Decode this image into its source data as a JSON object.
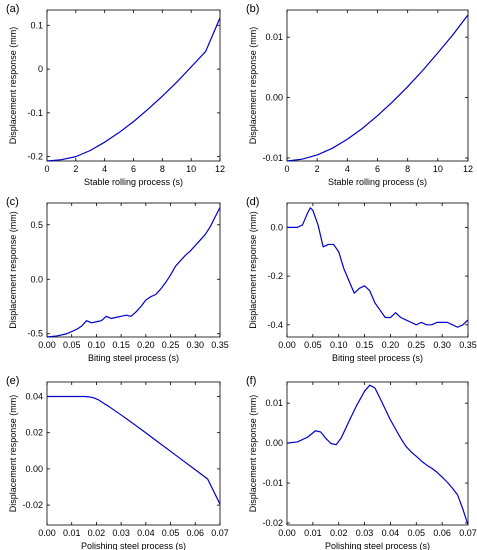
{
  "chart_data": [
    {
      "panel_label": "(a)",
      "type": "line",
      "xlabel": "Stable rolling process (s)",
      "ylabel": "Displacement response (mm)",
      "xlim": [
        0,
        12
      ],
      "ylim": [
        -0.21,
        0.135
      ],
      "xticks": [
        "0",
        "2",
        "4",
        "6",
        "8",
        "10",
        "12"
      ],
      "xtick_values": [
        0,
        2,
        4,
        6,
        8,
        10,
        12
      ],
      "yticks": [
        "-0.2",
        "-0.1",
        "0",
        "0.1"
      ],
      "ytick_values": [
        -0.2,
        -0.1,
        0,
        0.1
      ],
      "series": [
        {
          "color": "#0000cc",
          "x": [
            0,
            1,
            2,
            3,
            4,
            5,
            6,
            7,
            8,
            9,
            10,
            11,
            12
          ],
          "y": [
            -0.21,
            -0.207,
            -0.2,
            -0.186,
            -0.167,
            -0.145,
            -0.12,
            -0.092,
            -0.062,
            -0.03,
            0.005,
            0.04,
            0.117
          ]
        }
      ]
    },
    {
      "panel_label": "(b)",
      "type": "line",
      "xlabel": "Stable rolling process (s)",
      "ylabel": "Displacement response (mm)",
      "xlim": [
        0,
        12
      ],
      "ylim": [
        -0.0105,
        0.0145
      ],
      "xticks": [
        "0",
        "2",
        "4",
        "6",
        "8",
        "10",
        "12"
      ],
      "xtick_values": [
        0,
        2,
        4,
        6,
        8,
        10,
        12
      ],
      "yticks": [
        "-0.01",
        "0.00",
        "0.01"
      ],
      "ytick_values": [
        -0.01,
        0,
        0.01
      ],
      "series": [
        {
          "color": "#0000cc",
          "x": [
            0,
            1,
            2,
            3,
            4,
            5,
            6,
            7,
            8,
            9,
            10,
            11,
            12
          ],
          "y": [
            -0.0105,
            -0.0102,
            -0.0095,
            -0.0084,
            -0.0069,
            -0.0051,
            -0.003,
            -0.0007,
            0.0018,
            0.0045,
            0.0074,
            0.0104,
            0.0137
          ]
        }
      ]
    },
    {
      "panel_label": "(c)",
      "type": "line",
      "xlabel": "Biting steel process (s)",
      "ylabel": "Displacement response (mm)",
      "xlim": [
        0,
        0.35
      ],
      "ylim": [
        -0.53,
        0.7
      ],
      "xticks": [
        "0.00",
        "0.05",
        "0.10",
        "0.15",
        "0.20",
        "0.25",
        "0.30",
        "0.35"
      ],
      "xtick_values": [
        0,
        0.05,
        0.1,
        0.15,
        0.2,
        0.25,
        0.3,
        0.35
      ],
      "yticks": [
        "-0.5",
        "0.0",
        "0.5"
      ],
      "ytick_values": [
        -0.5,
        0,
        0.5
      ],
      "series": [
        {
          "color": "#0000cc",
          "x": [
            0,
            0.02,
            0.04,
            0.06,
            0.07,
            0.08,
            0.09,
            0.1,
            0.11,
            0.12,
            0.13,
            0.14,
            0.15,
            0.16,
            0.17,
            0.18,
            0.19,
            0.2,
            0.21,
            0.22,
            0.23,
            0.24,
            0.25,
            0.26,
            0.27,
            0.28,
            0.29,
            0.3,
            0.31,
            0.32,
            0.33,
            0.34,
            0.35
          ],
          "y": [
            -0.53,
            -0.52,
            -0.5,
            -0.46,
            -0.43,
            -0.38,
            -0.4,
            -0.39,
            -0.38,
            -0.34,
            -0.36,
            -0.35,
            -0.34,
            -0.33,
            -0.34,
            -0.3,
            -0.25,
            -0.19,
            -0.16,
            -0.14,
            -0.09,
            -0.03,
            0.04,
            0.12,
            0.17,
            0.22,
            0.26,
            0.31,
            0.36,
            0.41,
            0.48,
            0.57,
            0.66
          ]
        }
      ]
    },
    {
      "panel_label": "(d)",
      "type": "line",
      "xlabel": "Biting steel process (s)",
      "ylabel": "Displacement response (mm)",
      "xlim": [
        0,
        0.35
      ],
      "ylim": [
        -0.45,
        0.1
      ],
      "xticks": [
        "0.00",
        "0.05",
        "0.10",
        "0.15",
        "0.20",
        "0.25",
        "0.30",
        "0.35"
      ],
      "xtick_values": [
        0,
        0.05,
        0.1,
        0.15,
        0.2,
        0.25,
        0.3,
        0.35
      ],
      "yticks": [
        "-0.4",
        "-0.2",
        "0.0"
      ],
      "ytick_values": [
        -0.4,
        -0.2,
        0
      ],
      "series": [
        {
          "color": "#0000cc",
          "x": [
            0,
            0.01,
            0.02,
            0.03,
            0.04,
            0.045,
            0.05,
            0.06,
            0.07,
            0.08,
            0.09,
            0.1,
            0.11,
            0.12,
            0.13,
            0.14,
            0.15,
            0.16,
            0.17,
            0.18,
            0.19,
            0.2,
            0.21,
            0.22,
            0.23,
            0.24,
            0.25,
            0.26,
            0.27,
            0.28,
            0.29,
            0.3,
            0.31,
            0.32,
            0.33,
            0.34,
            0.35
          ],
          "y": [
            0,
            0,
            0,
            0.01,
            0.06,
            0.08,
            0.07,
            0.01,
            -0.08,
            -0.07,
            -0.07,
            -0.1,
            -0.17,
            -0.22,
            -0.27,
            -0.25,
            -0.24,
            -0.26,
            -0.31,
            -0.34,
            -0.37,
            -0.37,
            -0.35,
            -0.37,
            -0.38,
            -0.39,
            -0.4,
            -0.39,
            -0.4,
            -0.4,
            -0.39,
            -0.39,
            -0.39,
            -0.4,
            -0.41,
            -0.4,
            -0.38
          ]
        }
      ]
    },
    {
      "panel_label": "(e)",
      "type": "line",
      "xlabel": "Polishing steel process (s)",
      "ylabel": "Displacement response (mm)",
      "xlim": [
        0,
        0.07
      ],
      "ylim": [
        -0.031,
        0.048
      ],
      "xticks": [
        "0.00",
        "0.01",
        "0.02",
        "0.03",
        "0.04",
        "0.05",
        "0.06",
        "0.07"
      ],
      "xtick_values": [
        0,
        0.01,
        0.02,
        0.03,
        0.04,
        0.05,
        0.06,
        0.07
      ],
      "yticks": [
        "-0.02",
        "0.00",
        "0.02",
        "0.04"
      ],
      "ytick_values": [
        -0.02,
        0,
        0.02,
        0.04
      ],
      "series": [
        {
          "color": "#0000cc",
          "x": [
            0,
            0.005,
            0.01,
            0.015,
            0.017,
            0.019,
            0.021,
            0.023,
            0.025,
            0.03,
            0.035,
            0.04,
            0.045,
            0.05,
            0.055,
            0.06,
            0.065,
            0.07
          ],
          "y": [
            0.04,
            0.04,
            0.04,
            0.04,
            0.0398,
            0.0392,
            0.038,
            0.0362,
            0.0345,
            0.0298,
            0.0249,
            0.0199,
            0.0148,
            0.0097,
            0.0046,
            -0.0005,
            -0.0056,
            -0.0195
          ]
        }
      ]
    },
    {
      "panel_label": "(f)",
      "type": "line",
      "xlabel": "Polishing steel process (s)",
      "ylabel": "Displacement response (mm)",
      "xlim": [
        0,
        0.07
      ],
      "ylim": [
        -0.0205,
        0.0153
      ],
      "xticks": [
        "0.00",
        "0.01",
        "0.02",
        "0.03",
        "0.04",
        "0.05",
        "0.06",
        "0.07"
      ],
      "xtick_values": [
        0,
        0.01,
        0.02,
        0.03,
        0.04,
        0.05,
        0.06,
        0.07
      ],
      "yticks": [
        "-0.02",
        "-0.01",
        "0.00",
        "0.01"
      ],
      "ytick_values": [
        -0.02,
        -0.01,
        0,
        0.01
      ],
      "series": [
        {
          "color": "#0000cc",
          "x": [
            0,
            0.004,
            0.008,
            0.011,
            0.013,
            0.015,
            0.017,
            0.019,
            0.021,
            0.024,
            0.027,
            0.03,
            0.032,
            0.034,
            0.036,
            0.038,
            0.04,
            0.042,
            0.044,
            0.046,
            0.048,
            0.05,
            0.052,
            0.054,
            0.056,
            0.058,
            0.06,
            0.062,
            0.064,
            0.066,
            0.068,
            0.07
          ],
          "y": [
            0,
            0.0003,
            0.0015,
            0.0031,
            0.0028,
            0.0012,
            -0.0001,
            -0.0004,
            0.0013,
            0.0055,
            0.0095,
            0.013,
            0.0145,
            0.0138,
            0.0112,
            0.0085,
            0.0058,
            0.0035,
            0.0012,
            -0.0008,
            -0.0022,
            -0.0033,
            -0.0045,
            -0.0055,
            -0.0063,
            -0.0073,
            -0.0085,
            -0.0098,
            -0.0113,
            -0.013,
            -0.0165,
            -0.0205
          ]
        }
      ]
    }
  ]
}
